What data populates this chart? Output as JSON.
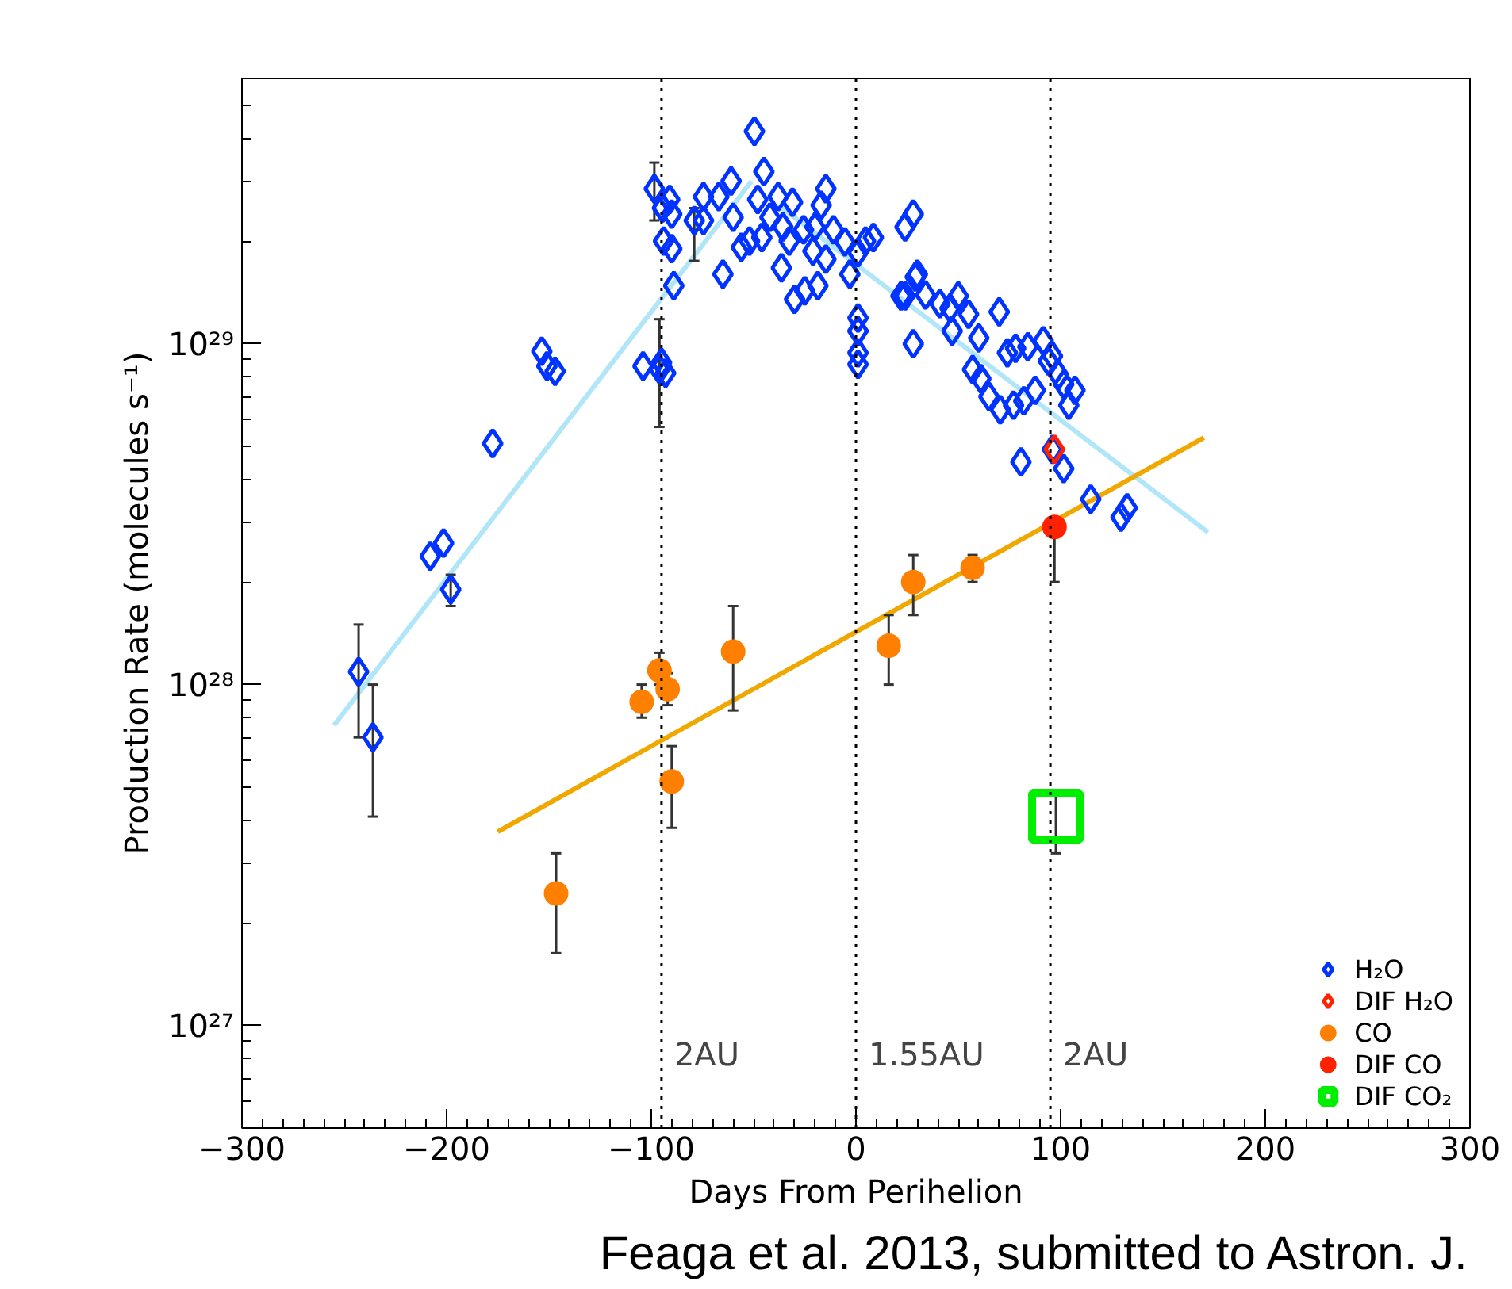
{
  "chart_data": {
    "type": "scatter",
    "xlabel": "Days From Perihelion",
    "ylabel": "Production Rate (molecules s⁻¹)",
    "xlim": [
      -300,
      300
    ],
    "xticks": [
      -300,
      -200,
      -100,
      0,
      100,
      200,
      300
    ],
    "ylim": [
      5e+26,
      6e+29
    ],
    "yticks": [
      {
        "value": 1e+27,
        "label": "10²⁷"
      },
      {
        "value": 1e+28,
        "label": "10²⁸"
      },
      {
        "value": 1e+29,
        "label": "10²⁹"
      }
    ],
    "log": "y",
    "legend": "bottom right",
    "ref_lines": [
      {
        "axis": "x",
        "value": -95,
        "label": "2AU",
        "line_style": "dotted"
      },
      {
        "axis": "x",
        "value": 0,
        "label": "1.55AU",
        "line_style": "dotted"
      },
      {
        "axis": "x",
        "value": 95,
        "label": "2AU",
        "line_style": "dotted"
      }
    ],
    "annotations": [
      "Feaga et al. 2013, submitted to Astron. J."
    ],
    "series": [
      {
        "type": "line",
        "color": "#b0e6f8",
        "x": [
          -255,
          -51
        ],
        "values": [
          7.6e+27,
          3e+29
        ]
      },
      {
        "type": "line",
        "color": "#b0e6f8",
        "x": [
          -36,
          172
        ],
        "values": [
          2.5e+29,
          2.8e+28
        ]
      },
      {
        "type": "line",
        "color": "#f0a800",
        "x": [
          -175,
          170
        ],
        "values": [
          3.7e+27,
          5.3e+28
        ]
      },
      {
        "name": "H₂O",
        "marker": "diamond",
        "color": "#0033ff",
        "x": [
          -243,
          -236,
          -208,
          -201.5,
          -198,
          -177.5,
          -153.5,
          -151,
          -147,
          -104,
          -96,
          -95,
          -93,
          -98.5,
          -94.5,
          -91,
          -90,
          -94,
          -90,
          -89,
          -79,
          -74.5,
          -74.5,
          -49.6,
          -45,
          -65,
          -61,
          -67,
          -60,
          -56,
          -52,
          -46,
          -48,
          -42,
          -38,
          -31,
          -35.7,
          -32.6,
          -36.4,
          -30,
          -25,
          -18.6,
          -21,
          -25.6,
          -20,
          -14.7,
          -17,
          -11,
          -14.7,
          -5.4,
          -3,
          1,
          4.7,
          8.5,
          1,
          1,
          1,
          1,
          24,
          28,
          24,
          28,
          30,
          29,
          22,
          34,
          41,
          46,
          50,
          55,
          47,
          60,
          70,
          57,
          61,
          65,
          70.5,
          77,
          74,
          78,
          84,
          91.5,
          87.6,
          94,
          96,
          99,
          101.5,
          107,
          104,
          82,
          80.6,
          96,
          101.5,
          114.7,
          129.5,
          132.5
        ],
        "values": [
          1.09e+28,
          7e+27,
          2.38e+28,
          2.6e+28,
          1.9e+28,
          5.1e+28,
          9.5e+28,
          8.6e+28,
          8.3e+28,
          8.6e+28,
          8.4e+28,
          8.8e+28,
          8.2e+28,
          2.85e+29,
          2.5e+29,
          2.65e+29,
          2.4e+29,
          2e+29,
          1.9e+29,
          1.48e+29,
          2.3e+29,
          2.7e+29,
          2.3e+29,
          4.2e+29,
          3.2e+29,
          1.6e+29,
          3e+29,
          2.7e+29,
          2.35e+29,
          1.92e+29,
          2e+29,
          2.05e+29,
          2.65e+29,
          2.35e+29,
          2.7e+29,
          2.6e+29,
          2.2e+29,
          2e+29,
          1.67e+29,
          1.35e+29,
          1.43e+29,
          1.48e+29,
          1.87e+29,
          2.16e+29,
          2.2e+29,
          2.85e+29,
          2.55e+29,
          2.16e+29,
          1.77e+29,
          1.99e+29,
          1.6e+29,
          1.85e+29,
          2e+29,
          2.05e+29,
          1.19e+29,
          1.09e+29,
          9.4e+28,
          8.7e+28,
          2.2e+29,
          2.4e+29,
          1.38e+29,
          1e+29,
          1.6e+29,
          1.57e+29,
          1.38e+29,
          1.39e+29,
          1.31e+29,
          1.27e+29,
          1.38e+29,
          1.22e+29,
          1.09e+29,
          1.04e+29,
          1.24e+29,
          8.4e+28,
          7.9e+28,
          7e+28,
          6.4e+28,
          6.6e+28,
          9.4e+28,
          9.7e+28,
          9.8e+28,
          1.02e+29,
          7.3e+28,
          8.9e+28,
          9.2e+28,
          8.1e+28,
          7.6e+28,
          7.3e+28,
          6.6e+28,
          6.8e+28,
          4.5e+28,
          4.9e+28,
          4.3e+28,
          3.5e+28,
          3.1e+28,
          3.3e+28
        ],
        "errors": [
          [
            7e+27,
            1.5e+28
          ],
          [
            4.1e+27,
            1e+28
          ],
          null,
          null,
          [
            1.7e+28,
            2.1e+28
          ],
          null,
          null,
          null,
          null,
          null,
          [
            5.7e+28,
            1.18e+29
          ],
          null,
          null,
          [
            2.3e+29,
            3.4e+29
          ],
          null,
          null,
          null,
          null,
          null,
          null,
          [
            1.75e+29,
            2.5e+29
          ],
          null,
          null,
          null,
          null,
          null,
          null,
          null,
          null,
          null,
          null,
          null,
          null,
          null,
          null,
          null,
          null,
          null,
          null,
          null,
          null,
          null,
          null,
          null,
          null,
          null,
          null,
          null,
          null,
          null,
          null,
          null,
          null,
          null,
          null,
          null,
          null,
          null,
          null,
          null,
          null,
          null,
          null,
          null,
          null,
          null,
          null,
          null,
          null,
          null,
          null,
          null,
          null,
          null,
          null,
          null,
          null,
          null,
          null,
          null,
          null,
          null,
          null,
          null,
          null,
          null,
          null,
          null,
          null,
          null,
          null,
          null,
          null,
          null,
          null,
          null
        ]
      },
      {
        "name": "DIF H₂O",
        "marker": "diamond",
        "color": "#ff2200",
        "x": [
          97
        ],
        "values": [
          4.9e+28
        ]
      },
      {
        "name": "CO",
        "marker": "circle",
        "color": "#ff8000",
        "x": [
          -146.5,
          -104.7,
          -96,
          -92,
          -90,
          -60,
          16,
          28,
          57
        ],
        "values": [
          2.44e+27,
          8.9e+27,
          1.1e+28,
          9.7e+27,
          5.2e+27,
          1.25e+28,
          1.3e+28,
          2e+28,
          2.2e+28
        ],
        "errors": [
          [
            1.63e+27,
            3.2e+27
          ],
          [
            8e+27,
            1e+28
          ],
          [
            1e+28,
            1.24e+28
          ],
          [
            8.7e+27,
            1.08e+28
          ],
          [
            3.8e+27,
            6.6e+27
          ],
          [
            8.4e+27,
            1.7e+28
          ],
          [
            1e+28,
            1.6e+28
          ],
          [
            1.6e+28,
            2.4e+28
          ],
          [
            2e+28,
            2.4e+28
          ]
        ]
      },
      {
        "name": "DIF CO",
        "marker": "circle",
        "color": "#ff2200",
        "x": [
          97
        ],
        "values": [
          2.9e+28
        ],
        "errors": [
          [
            2e+28,
            2.9e+28
          ]
        ]
      },
      {
        "name": "DIF CO₂",
        "marker": "square",
        "color": "#00ee00",
        "x": [
          97.7
        ],
        "values": [
          4.1e+27
        ],
        "errors": [
          [
            3.2e+27,
            4.9e+27
          ]
        ]
      }
    ]
  }
}
